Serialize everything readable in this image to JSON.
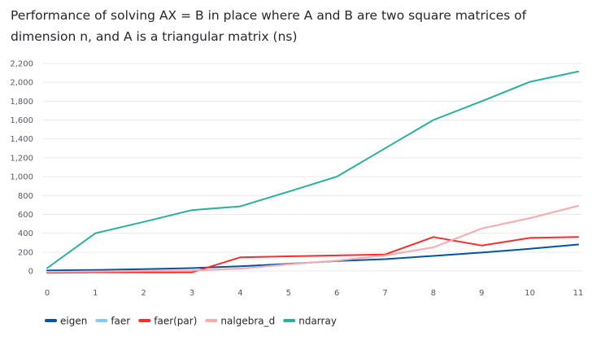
{
  "chart_data": {
    "type": "line",
    "title": "Performance of solving AX = B in place where A and B are two square matrices of dimension n, and A is a triangular matrix (ns)",
    "xlabel": "",
    "ylabel": "",
    "x": [
      0,
      1,
      2,
      3,
      4,
      5,
      6,
      7,
      8,
      9,
      10,
      11
    ],
    "x_ticks": [
      "0",
      "1",
      "2",
      "3",
      "4",
      "5",
      "6",
      "7",
      "8",
      "9",
      "10",
      "11"
    ],
    "y_ticks": [
      "0",
      "200",
      "400",
      "600",
      "800",
      "1,000",
      "1,200",
      "1,400",
      "1,600",
      "1,800",
      "2,000",
      "2,200"
    ],
    "xlim": [
      0,
      11
    ],
    "ylim": [
      0,
      2200
    ],
    "grid": "horizontal",
    "legend_position": "bottom",
    "series": [
      {
        "name": "eigen",
        "color": "#0054a3",
        "values": [
          5,
          10,
          20,
          30,
          50,
          75,
          105,
          125,
          160,
          195,
          235,
          280
        ]
      },
      {
        "name": "faer",
        "color": "#83c9ff",
        "values": [
          -10,
          -5,
          0,
          5,
          25,
          70,
          110,
          165,
          250,
          450,
          560,
          690
        ]
      },
      {
        "name": "faer(par)",
        "color": "#ff2b2b",
        "values": [
          -20,
          -15,
          -15,
          -15,
          145,
          155,
          165,
          175,
          360,
          270,
          350,
          360
        ]
      },
      {
        "name": "nalgebra_d",
        "color": "#ffabab",
        "values": [
          -10,
          -5,
          0,
          5,
          25,
          70,
          110,
          165,
          250,
          450,
          560,
          690
        ]
      },
      {
        "name": "ndarray",
        "color": "#29b09d",
        "values": [
          30,
          400,
          520,
          645,
          685,
          840,
          1000,
          1300,
          1600,
          1800,
          2005,
          2115
        ]
      }
    ]
  }
}
